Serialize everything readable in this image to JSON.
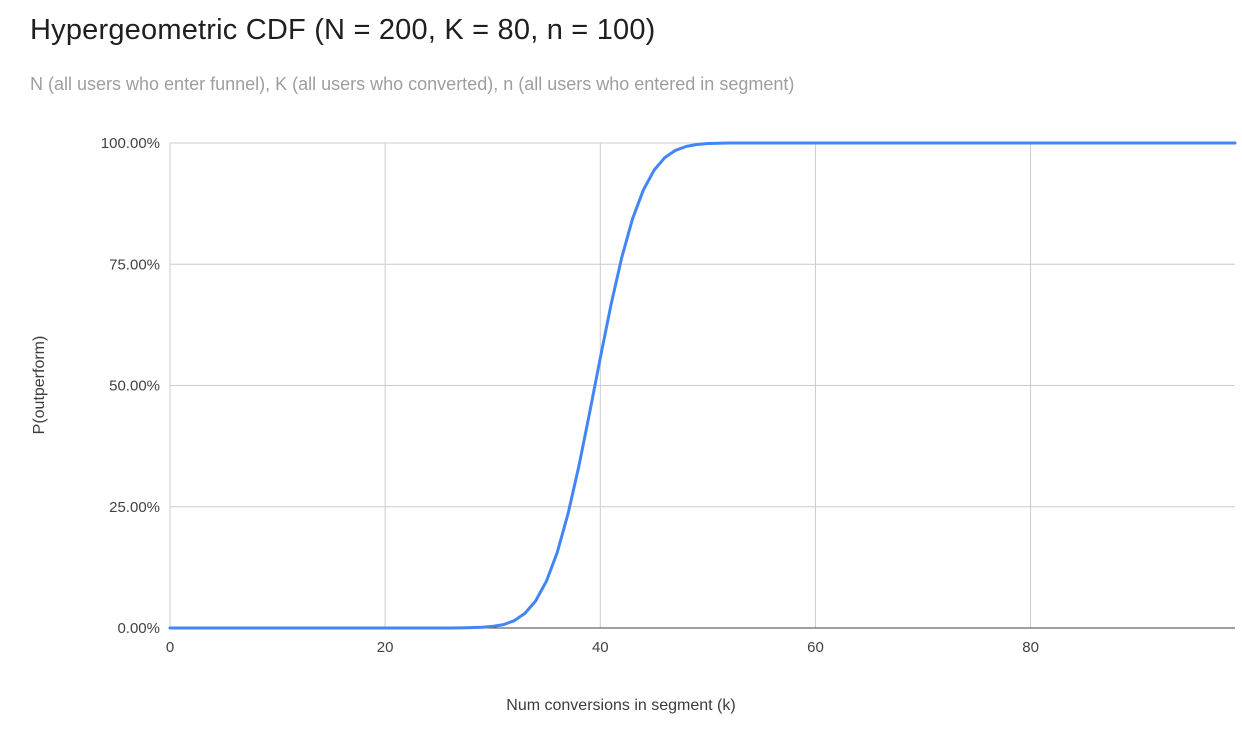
{
  "chart_data": {
    "type": "line",
    "title": "Hypergeometric CDF (N = 200, K = 80, n = 100)",
    "subtitle": "N (all users who enter funnel), K (all users who converted), n (all users who entered in segment)",
    "xlabel": "Num conversions in segment (k)",
    "ylabel": "P(outperform)",
    "xlim": [
      0,
      99
    ],
    "ylim": [
      0,
      1
    ],
    "x_ticks": [
      0,
      20,
      40,
      60,
      80
    ],
    "x_tick_labels": [
      "0",
      "20",
      "40",
      "60",
      "80"
    ],
    "y_ticks": [
      0,
      0.25,
      0.5,
      0.75,
      1
    ],
    "y_tick_labels": [
      "0.00%",
      "25.00%",
      "50.00%",
      "75.00%",
      "100.00%"
    ],
    "grid": true,
    "legend": "none",
    "line_color": "#4285f4",
    "grid_color": "#cccccc",
    "axis_color": "#424242",
    "series": [
      {
        "name": "P(outperform)",
        "x": [
          0,
          1,
          2,
          3,
          4,
          5,
          6,
          7,
          8,
          9,
          10,
          11,
          12,
          13,
          14,
          15,
          16,
          17,
          18,
          19,
          20,
          21,
          22,
          23,
          24,
          25,
          26,
          27,
          28,
          29,
          30,
          31,
          32,
          33,
          34,
          35,
          36,
          37,
          38,
          39,
          40,
          41,
          42,
          43,
          44,
          45,
          46,
          47,
          48,
          49,
          50,
          51,
          52,
          53,
          54,
          55,
          56,
          57,
          58,
          59,
          60,
          61,
          62,
          63,
          64,
          65,
          66,
          67,
          68,
          69,
          70,
          71,
          72,
          73,
          74,
          75,
          76,
          77,
          78,
          79,
          80,
          81,
          82,
          83,
          84,
          85,
          86,
          87,
          88,
          89,
          90,
          91,
          92,
          93,
          94,
          95,
          96,
          97,
          98,
          99
        ],
        "y": [
          0,
          0,
          0,
          0,
          0,
          0,
          0,
          0,
          0,
          0,
          0,
          0,
          0,
          0,
          0,
          0,
          0,
          0,
          0,
          0,
          0,
          0,
          0,
          0,
          0,
          0,
          0.0001,
          0.0003,
          0.0007,
          0.0015,
          0.0033,
          0.007,
          0.0151,
          0.0304,
          0.0562,
          0.097,
          0.156,
          0.2355,
          0.333,
          0.443,
          0.557,
          0.667,
          0.7645,
          0.844,
          0.903,
          0.944,
          0.97,
          0.985,
          0.993,
          0.997,
          0.999,
          0.9996,
          0.9999,
          1,
          1,
          1,
          1,
          1,
          1,
          1,
          1,
          1,
          1,
          1,
          1,
          1,
          1,
          1,
          1,
          1,
          1,
          1,
          1,
          1,
          1,
          1,
          1,
          1,
          1,
          1,
          1,
          1,
          1,
          1,
          1,
          1,
          1,
          1,
          1,
          1,
          1,
          1,
          1,
          1,
          1,
          1,
          1,
          1,
          1,
          1
        ]
      }
    ]
  }
}
